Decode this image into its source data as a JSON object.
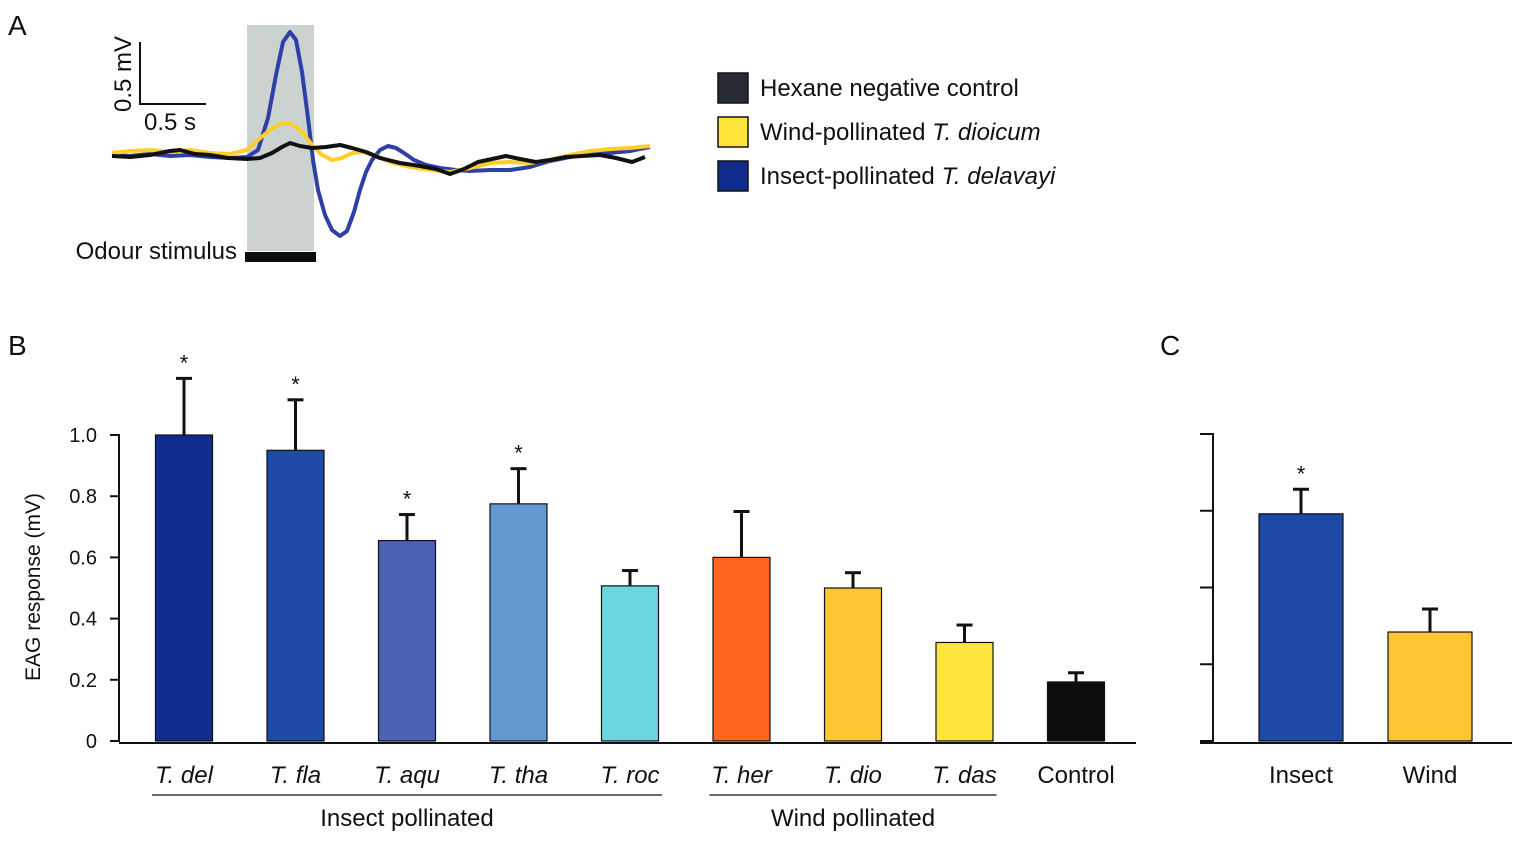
{
  "panels": {
    "a": "A",
    "b": "B",
    "c": "C"
  },
  "colors": {
    "hexane": "#262a33",
    "wind_trace": "#ffce2a",
    "insect_trace": "#2e3fa8",
    "legend_wind": "#ffe53b",
    "legend_insect": "#102c8e",
    "stimulus_shade": "#ccd2cf"
  },
  "panel_a": {
    "scale_y": "0.5 mV",
    "scale_x": "0.5 s",
    "stimulus_label": "Odour stimulus",
    "legend": [
      {
        "key": "hexane",
        "text": "Hexane negative control",
        "italic": "",
        "color": "#262a33"
      },
      {
        "key": "wind",
        "text": "Wind-pollinated ",
        "italic": "T. dioicum",
        "color": "#ffe53b"
      },
      {
        "key": "insect",
        "text": "Insect-pollinated ",
        "italic": "T. delavayi",
        "color": "#102c8e"
      }
    ]
  },
  "chart_data": [
    {
      "type": "bar",
      "panel": "B",
      "ylabel": "EAG response (mV)",
      "ylim": [
        0,
        1.0
      ],
      "yticks": [
        "0",
        "0.2",
        "0.4",
        "0.6",
        "0.8",
        "1.0"
      ],
      "yticks_values": [
        0,
        0.2,
        0.4,
        0.6,
        0.8,
        1.0
      ],
      "categories": [
        "T. del",
        "T. fla",
        "T. aqu",
        "T. tha",
        "T. roc",
        "T. her",
        "T. dio",
        "T. das",
        "Control"
      ],
      "italic": [
        true,
        true,
        true,
        true,
        true,
        true,
        true,
        true,
        false
      ],
      "values": [
        1.0,
        0.95,
        0.655,
        0.775,
        0.507,
        0.6,
        0.5,
        0.322,
        0.193
      ],
      "errors": [
        0.185,
        0.165,
        0.085,
        0.115,
        0.05,
        0.15,
        0.05,
        0.057,
        0.03
      ],
      "significant": [
        true,
        true,
        true,
        true,
        false,
        false,
        false,
        false,
        false
      ],
      "colors": [
        "#102c8e",
        "#1f49a6",
        "#4c62b2",
        "#6399d1",
        "#6ad6e0",
        "#ff641e",
        "#ffc533",
        "#ffe63e",
        "#0d0d0d"
      ],
      "groups": [
        {
          "label": "Insect pollinated",
          "from": 0,
          "to": 4
        },
        {
          "label": "Wind pollinated",
          "from": 5,
          "to": 7
        }
      ],
      "significance_marker": "*"
    },
    {
      "type": "bar",
      "panel": "C",
      "ylim": [
        0,
        1.0
      ],
      "yticks_values": [
        0,
        0.25,
        0.5,
        0.75,
        1.0
      ],
      "categories": [
        "Insect",
        "Wind"
      ],
      "values": [
        0.74,
        0.355
      ],
      "errors": [
        0.08,
        0.075
      ],
      "significant": [
        true,
        false
      ],
      "colors": [
        "#1f49a6",
        "#ffc533"
      ],
      "significance_marker": "*"
    }
  ]
}
